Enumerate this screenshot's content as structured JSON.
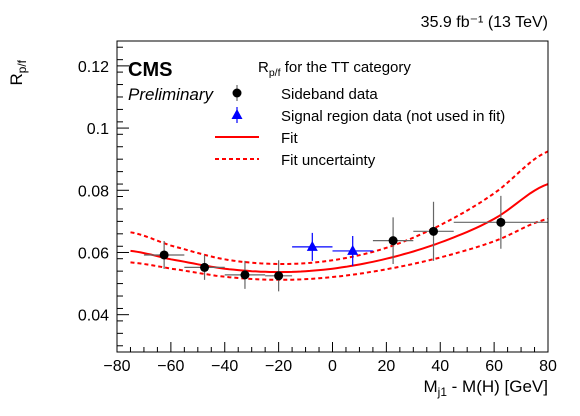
{
  "chart_data": {
    "type": "scatter",
    "header": "35.9 fb⁻¹ (13 TeV)",
    "experiment": "CMS",
    "status": "Preliminary",
    "legend_title": "R_p/f for the TT category",
    "ylabel": "R_p/f",
    "xlabel": "M_j1 - M(H) [GeV]",
    "xlim": [
      -80,
      80
    ],
    "ylim": [
      0.028,
      0.128
    ],
    "xticks": [
      -80,
      -60,
      -40,
      -20,
      0,
      20,
      40,
      60,
      80
    ],
    "xtick_labels": [
      "−80",
      "−60",
      "−40",
      "−20",
      "0",
      "20",
      "40",
      "60",
      "80"
    ],
    "yticks": [
      0.04,
      0.06,
      0.08,
      0.1,
      0.12
    ],
    "ytick_labels": [
      "0.04",
      "0.06",
      "0.08",
      "0.1",
      "0.12"
    ],
    "legend_position": "top-right",
    "series": [
      {
        "name": "Sideband data",
        "marker": "circle",
        "color": "#000000",
        "points": [
          {
            "x": -62.5,
            "y": 0.0592,
            "xerr": 7.5,
            "yerr": 0.0045
          },
          {
            "x": -47.5,
            "y": 0.0552,
            "xerr": 7.5,
            "yerr": 0.004
          },
          {
            "x": -32.5,
            "y": 0.0528,
            "xerr": 7.5,
            "yerr": 0.0045
          },
          {
            "x": -20,
            "y": 0.0525,
            "xerr": 5,
            "yerr": 0.005
          },
          {
            "x": 22.5,
            "y": 0.0638,
            "xerr": 7.5,
            "yerr": 0.0075
          },
          {
            "x": 37.5,
            "y": 0.0668,
            "xerr": 7.5,
            "yerr": 0.0095
          },
          {
            "x": 62.5,
            "y": 0.0697,
            "xerr": 17.5,
            "yerr": 0.0085
          }
        ]
      },
      {
        "name": "Signal region data (not used in fit)",
        "marker": "triangle",
        "color": "#0000ff",
        "points": [
          {
            "x": -7.5,
            "y": 0.0618,
            "xerr": 7.5,
            "yerr": 0.0045
          },
          {
            "x": 7.5,
            "y": 0.0605,
            "xerr": 7.5,
            "yerr": 0.0048
          }
        ]
      }
    ],
    "fit": {
      "name": "Fit",
      "color": "#ff0000",
      "x": [
        -75,
        -60,
        -40,
        -20,
        0,
        20,
        40,
        60,
        80
      ],
      "y": [
        0.0605,
        0.0578,
        0.0548,
        0.0537,
        0.0548,
        0.058,
        0.0632,
        0.0708,
        0.082
      ]
    },
    "fit_upper": {
      "name": "Fit uncertainty",
      "color": "#ff0000",
      "x": [
        -75,
        -60,
        -40,
        -20,
        0,
        20,
        40,
        60,
        80
      ],
      "y": [
        0.0665,
        0.0622,
        0.0578,
        0.0563,
        0.0575,
        0.0615,
        0.0688,
        0.079,
        0.0925
      ]
    },
    "fit_lower": {
      "name": "Fit uncertainty",
      "color": "#ff0000",
      "x": [
        -75,
        -60,
        -40,
        -20,
        0,
        20,
        40,
        60,
        80
      ],
      "y": [
        0.0568,
        0.0548,
        0.0522,
        0.0512,
        0.0521,
        0.0546,
        0.0584,
        0.0636,
        0.0708
      ]
    },
    "legend": [
      {
        "label": "Sideband data",
        "symbol": "circle",
        "color": "#000000"
      },
      {
        "label": "Signal region data (not used in fit)",
        "symbol": "triangle",
        "color": "#0000ff"
      },
      {
        "label": "Fit",
        "symbol": "line",
        "color": "#ff0000"
      },
      {
        "label": "Fit uncertainty",
        "symbol": "dashed",
        "color": "#ff0000"
      }
    ]
  }
}
